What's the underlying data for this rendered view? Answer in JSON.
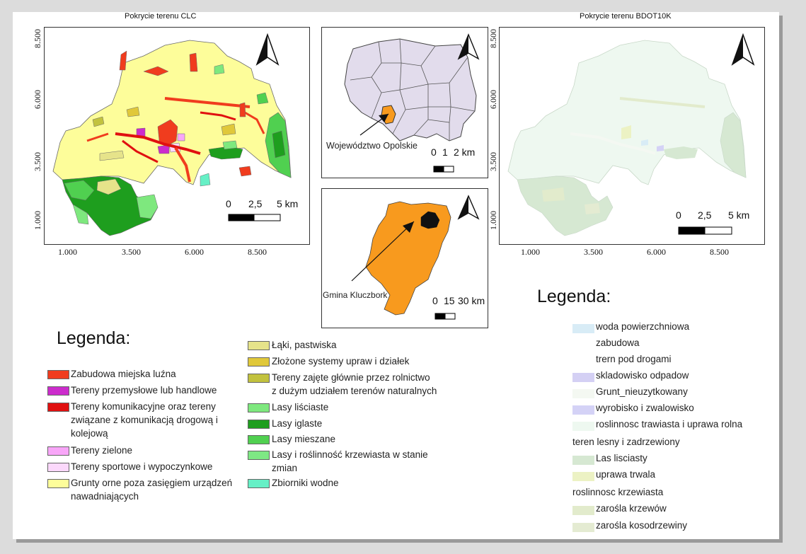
{
  "map_clc": {
    "title": "Pokrycie terenu CLC",
    "x_ticks": [
      "1.000",
      "3.500",
      "6.000",
      "8.500"
    ],
    "y_ticks": [
      "8.500",
      "6.000",
      "3.500",
      "1.000"
    ],
    "scale": {
      "l0": "0",
      "l1": "2,5",
      "l2": "5 km"
    }
  },
  "map_poland": {
    "annotation": "Województwo Opolskie",
    "scale": {
      "l0": "0",
      "l1": "1",
      "l2": "2 km"
    }
  },
  "map_opolskie": {
    "annotation": "Gmina Kluczbork",
    "scale": {
      "l0": "0",
      "l1": "15",
      "l2": "30 km"
    }
  },
  "map_bdot": {
    "title": "Pokrycie terenu BDOT10K",
    "x_ticks": [
      "1.000",
      "3.500",
      "6.000",
      "8.500"
    ],
    "y_ticks": [
      "8.500",
      "6.000",
      "3.500",
      "1.000"
    ],
    "scale": {
      "l0": "0",
      "l1": "2,5",
      "l2": "5 km"
    }
  },
  "legend_clc": {
    "title": "Legenda:",
    "col1": [
      {
        "color": "#f03c1e",
        "lines": [
          "Zabudowa miejska luźna"
        ]
      },
      {
        "color": "#cc2ccc",
        "lines": [
          "Tereny przemysłowe lub handlowe"
        ]
      },
      {
        "color": "#e01010",
        "lines": [
          "Tereny komunikacyjne oraz tereny",
          "związane z komunikacją drogową i",
          "kolejową"
        ]
      },
      {
        "color": "#f8a6f8",
        "lines": [
          "Tereny zielone"
        ]
      },
      {
        "color": "#fbd8fb",
        "lines": [
          "Tereny sportowe i wypoczynkowe"
        ]
      },
      {
        "color": "#fdfd9a",
        "lines": [
          "Grunty orne poza zasięgiem urządzeń",
          "nawadniających"
        ]
      }
    ],
    "col2": [
      {
        "color": "#e6e38a",
        "lines": [
          "Łąki, pastwiska"
        ]
      },
      {
        "color": "#e0c83a",
        "lines": [
          "Złożone systemy upraw i działek"
        ]
      },
      {
        "color": "#c2c23e",
        "lines": [
          "Tereny zajęte głównie przez rolnictwo",
          "z dużym udziałem terenów naturalnych"
        ]
      },
      {
        "color": "#7ee87e",
        "lines": [
          "Lasy liściaste"
        ]
      },
      {
        "color": "#1e9e1e",
        "lines": [
          "Lasy iglaste"
        ]
      },
      {
        "color": "#50d050",
        "lines": [
          "Lasy mieszane"
        ]
      },
      {
        "color": "#7ee884",
        "lines": [
          "Lasy i roślinność krzewiasta w stanie",
          "zmian"
        ]
      },
      {
        "color": "#66f0c6",
        "lines": [
          "Zbiorniki wodne"
        ]
      }
    ]
  },
  "legend_bdot": {
    "title": "Legenda:",
    "items": [
      {
        "kind": "swatch",
        "color": "#d8ecf6",
        "label": "woda powierzchniowa"
      },
      {
        "kind": "plain",
        "label": "zabudowa"
      },
      {
        "kind": "plain",
        "label": "trern pod drogami"
      },
      {
        "kind": "swatch",
        "color": "#d4d0f4",
        "label": "skladowisko odpadow"
      },
      {
        "kind": "swatch",
        "color": "#f4f8f2",
        "label": "Grunt_nieuzytkowany"
      },
      {
        "kind": "swatch",
        "color": "#d4d2f6",
        "label": "wyrobisko i zwalowisko"
      },
      {
        "kind": "swatch",
        "color": "#eef8f0",
        "label": "roslinnosc trawiasta i uprawa rolna"
      },
      {
        "kind": "header",
        "label": "teren lesny i zadrzewiony"
      },
      {
        "kind": "swatch",
        "color": "#d6e8d2",
        "label": "Las lisciasty"
      },
      {
        "kind": "swatch",
        "color": "#ecf2c4",
        "label": "uprawa trwala"
      },
      {
        "kind": "header",
        "label": "roslinnosc krzewiasta"
      },
      {
        "kind": "swatch",
        "color": "#e2ebcc",
        "label": "zarośla krzewów"
      },
      {
        "kind": "swatch",
        "color": "#e4ebd2",
        "label": "zarośla kosodrzewiny"
      }
    ]
  }
}
